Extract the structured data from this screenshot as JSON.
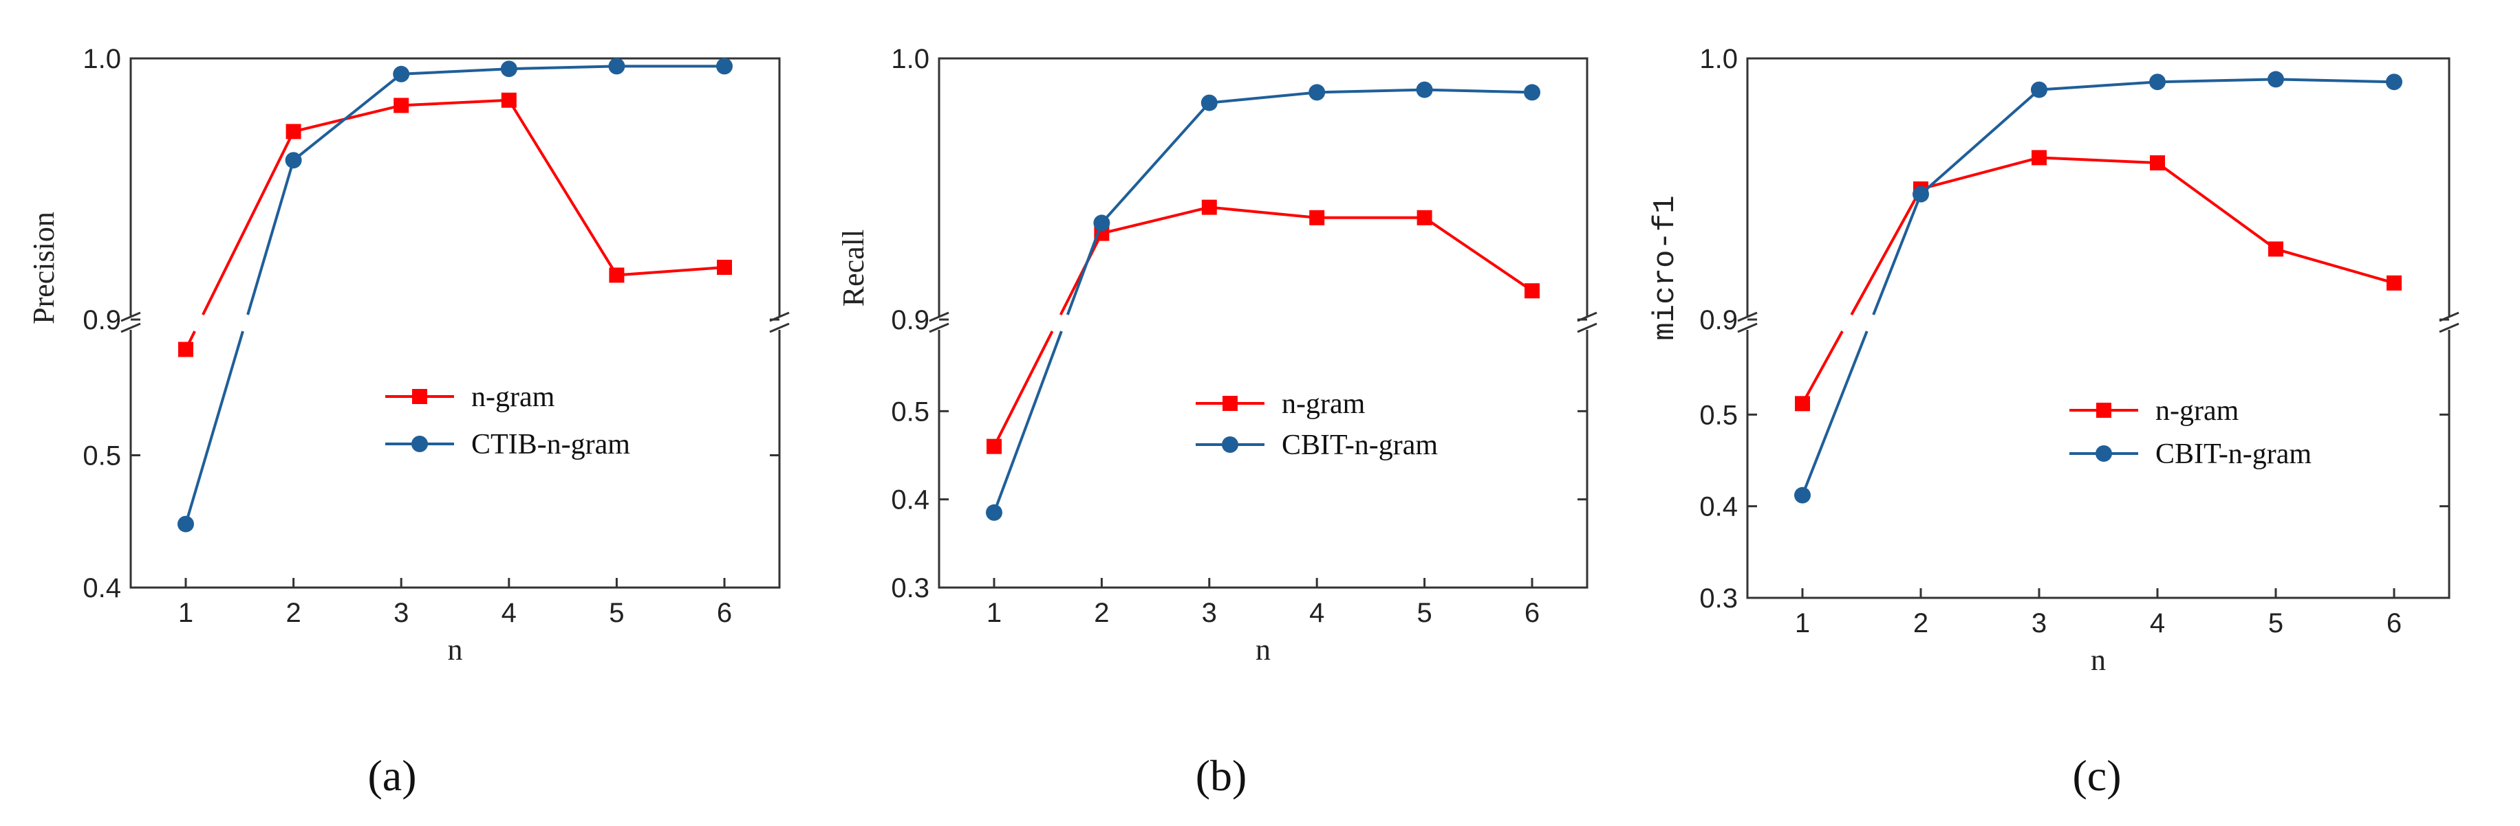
{
  "figure": {
    "panels": [
      "(a)",
      "(b)",
      "(c)"
    ]
  },
  "chart_data": [
    {
      "type": "line",
      "panel_label": "(a)",
      "xlabel": "n",
      "ylabel": "Precision",
      "x": [
        1,
        2,
        3,
        4,
        5,
        6
      ],
      "upper_ylim": [
        0.9,
        1.0
      ],
      "lower_ylim": [
        0.4,
        0.6
      ],
      "upper_ticks": [
        "0.9",
        "1.0"
      ],
      "lower_ticks": [
        "0.4",
        "0.5"
      ],
      "x_ticks": [
        "1",
        "2",
        "3",
        "4",
        "5",
        "6"
      ],
      "legend_position": "center-right",
      "series": [
        {
          "name": "n-gram",
          "color": "#ff0000",
          "marker": "square",
          "values": [
            0.58,
            0.972,
            0.982,
            0.984,
            0.917,
            0.92
          ]
        },
        {
          "name": "CTIB-n-gram",
          "color": "#1f5f99",
          "marker": "circle",
          "values": [
            0.448,
            0.961,
            0.994,
            0.996,
            0.997,
            0.997
          ]
        }
      ]
    },
    {
      "type": "line",
      "panel_label": "(b)",
      "xlabel": "n",
      "ylabel": "Recall",
      "x": [
        1,
        2,
        3,
        4,
        5,
        6
      ],
      "upper_ylim": [
        0.9,
        1.0
      ],
      "lower_ylim": [
        0.3,
        0.6
      ],
      "upper_ticks": [
        "0.9",
        "1.0"
      ],
      "lower_ticks": [
        "0.3",
        "0.4",
        "0.5"
      ],
      "x_ticks": [
        "1",
        "2",
        "3",
        "4",
        "5",
        "6"
      ],
      "legend_position": "center-right",
      "series": [
        {
          "name": "n-gram",
          "color": "#ff0000",
          "marker": "square",
          "values": [
            0.46,
            0.933,
            0.943,
            0.939,
            0.939,
            0.911
          ]
        },
        {
          "name": "CBIT-n-gram",
          "color": "#1f5f99",
          "marker": "circle",
          "values": [
            0.385,
            0.937,
            0.983,
            0.987,
            0.988,
            0.987
          ]
        }
      ]
    },
    {
      "type": "line",
      "panel_label": "(c)",
      "xlabel": "n",
      "ylabel": "micro-f1",
      "x": [
        1,
        2,
        3,
        4,
        5,
        6
      ],
      "upper_ylim": [
        0.9,
        1.0
      ],
      "lower_ylim": [
        0.3,
        0.6
      ],
      "upper_ticks": [
        "0.9",
        "1.0"
      ],
      "lower_ticks": [
        "0.3",
        "0.4",
        "0.5"
      ],
      "x_ticks": [
        "1",
        "2",
        "3",
        "4",
        "5",
        "6"
      ],
      "legend_position": "center-right",
      "series": [
        {
          "name": "n-gram",
          "color": "#ff0000",
          "marker": "square",
          "values": [
            0.512,
            0.95,
            0.962,
            0.96,
            0.927,
            0.914
          ]
        },
        {
          "name": "CBIT-n-gram",
          "color": "#1f5f99",
          "marker": "circle",
          "values": [
            0.412,
            0.948,
            0.988,
            0.991,
            0.992,
            0.991
          ]
        }
      ]
    }
  ]
}
